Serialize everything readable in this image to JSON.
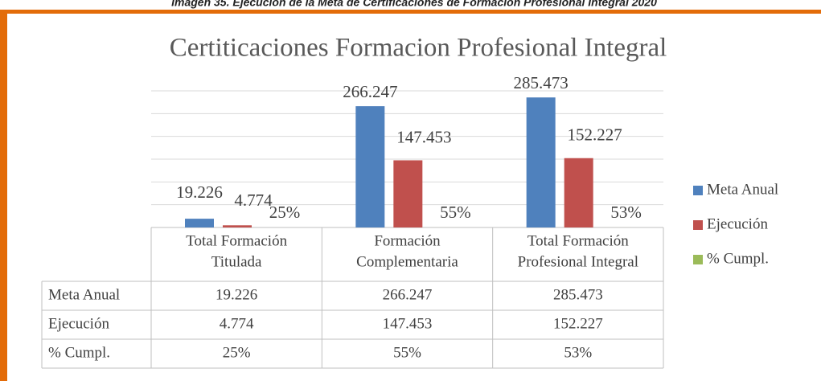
{
  "caption": "Imagen 35. Ejecución de la Meta de Certificaciones de Formación Profesional Integral 2020",
  "chart_data": {
    "type": "bar",
    "title": "Certiticaciones Formacion Profesional Integral",
    "categories": [
      [
        "Total Formación",
        "Titulada"
      ],
      [
        "Formación",
        "Complementaria"
      ],
      [
        "Total Formación",
        "Profesional Integral"
      ]
    ],
    "series": [
      {
        "name": "Meta Anual",
        "color": "#4f81bd",
        "values": [
          19226,
          266247,
          285473
        ],
        "value_labels": [
          "19.226",
          "266.247",
          "285.473"
        ]
      },
      {
        "name": "Ejecución",
        "color": "#c0504d",
        "values": [
          4774,
          147453,
          152227
        ],
        "value_labels": [
          "4.774",
          "147.453",
          "152.227"
        ]
      },
      {
        "name": "% Cumpl.",
        "color": "#9bbb59",
        "values": [
          25,
          55,
          53
        ],
        "value_labels": [
          "25%",
          "55%",
          "53%"
        ]
      }
    ],
    "ylim": [
      0,
      300000
    ],
    "yticks": [
      0,
      50000,
      100000,
      150000,
      200000,
      250000,
      300000
    ],
    "grid": true,
    "legend": "right"
  }
}
